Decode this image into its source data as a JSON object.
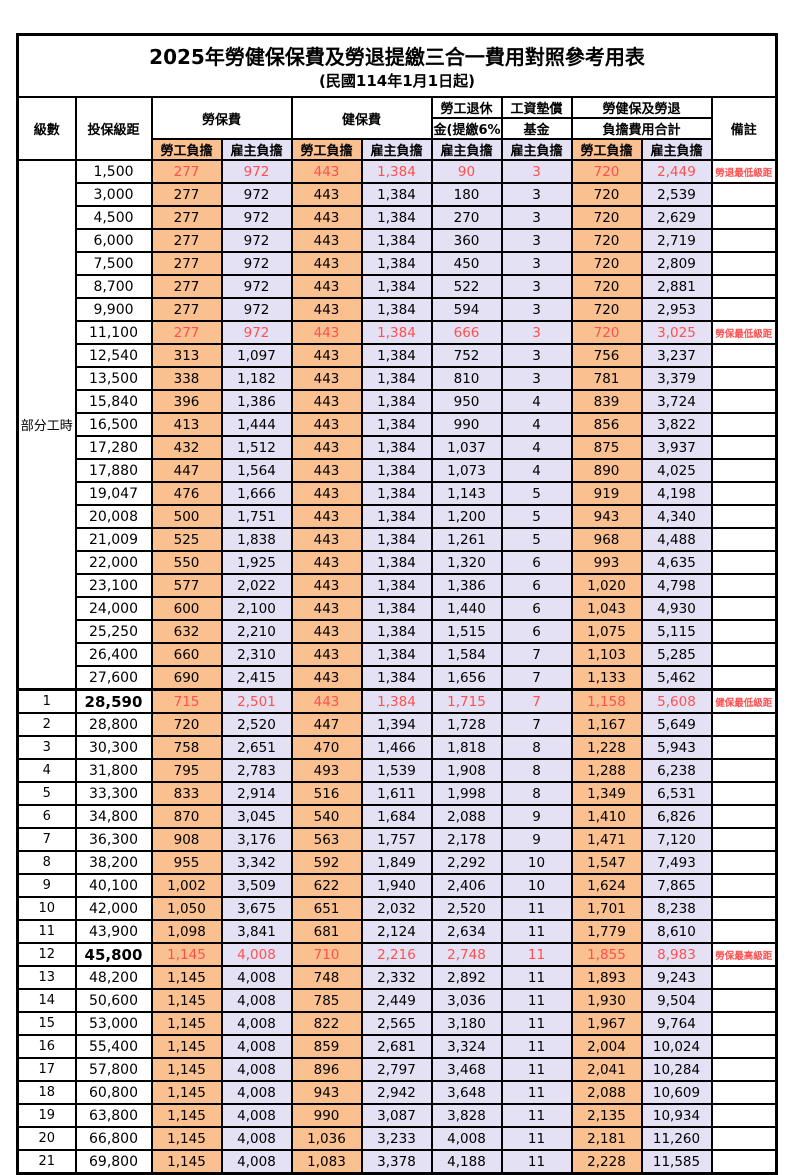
{
  "title": "2025年勞健保保費及勞退提繳三合一費用對照參考用表",
  "subtitle": "(民國114年1月1日起)",
  "colors": {
    "emp": "#FAC090",
    "er": "#E3E1F3",
    "red": "#FF5050"
  },
  "header": {
    "level": "級數",
    "bracket": "投保級距",
    "labor": "勞保費",
    "health": "健保費",
    "pension_line1": "勞工退休",
    "pension_line2": "金(提繳6%)",
    "fund_line1": "工資墊償",
    "fund_line2": "基金",
    "total_line1": "勞健保及勞退",
    "total_line2": "負擔費用合計",
    "remark": "備註",
    "emp": "勞工負擔",
    "er": "雇主負擔"
  },
  "table": {
    "part_time_label": "部分工時",
    "part_time_span": 23,
    "columns": [
      "級數",
      "投保級距",
      "勞保費-勞工負擔",
      "勞保費-雇主負擔",
      "健保費-勞工負擔",
      "健保費-雇主負擔",
      "勞工退休金(提繳6%)-雇主負擔",
      "工資墊償基金-雇主負擔",
      "合計-勞工負擔",
      "合計-雇主負擔",
      "備註"
    ],
    "rows": [
      {
        "level": "",
        "bracket": "1,500",
        "cells": [
          "277",
          "972",
          "443",
          "1,384",
          "90",
          "3",
          "720",
          "2,449"
        ],
        "remark": "勞退最低級距",
        "highlight": true
      },
      {
        "level": "",
        "bracket": "3,000",
        "cells": [
          "277",
          "972",
          "443",
          "1,384",
          "180",
          "3",
          "720",
          "2,539"
        ],
        "remark": ""
      },
      {
        "level": "",
        "bracket": "4,500",
        "cells": [
          "277",
          "972",
          "443",
          "1,384",
          "270",
          "3",
          "720",
          "2,629"
        ],
        "remark": ""
      },
      {
        "level": "",
        "bracket": "6,000",
        "cells": [
          "277",
          "972",
          "443",
          "1,384",
          "360",
          "3",
          "720",
          "2,719"
        ],
        "remark": ""
      },
      {
        "level": "",
        "bracket": "7,500",
        "cells": [
          "277",
          "972",
          "443",
          "1,384",
          "450",
          "3",
          "720",
          "2,809"
        ],
        "remark": ""
      },
      {
        "level": "",
        "bracket": "8,700",
        "cells": [
          "277",
          "972",
          "443",
          "1,384",
          "522",
          "3",
          "720",
          "2,881"
        ],
        "remark": ""
      },
      {
        "level": "",
        "bracket": "9,900",
        "cells": [
          "277",
          "972",
          "443",
          "1,384",
          "594",
          "3",
          "720",
          "2,953"
        ],
        "remark": ""
      },
      {
        "level": "",
        "bracket": "11,100",
        "cells": [
          "277",
          "972",
          "443",
          "1,384",
          "666",
          "3",
          "720",
          "3,025"
        ],
        "remark": "勞保最低級距",
        "highlight": true
      },
      {
        "level": "",
        "bracket": "12,540",
        "cells": [
          "313",
          "1,097",
          "443",
          "1,384",
          "752",
          "3",
          "756",
          "3,237"
        ],
        "remark": ""
      },
      {
        "level": "",
        "bracket": "13,500",
        "cells": [
          "338",
          "1,182",
          "443",
          "1,384",
          "810",
          "3",
          "781",
          "3,379"
        ],
        "remark": ""
      },
      {
        "level": "",
        "bracket": "15,840",
        "cells": [
          "396",
          "1,386",
          "443",
          "1,384",
          "950",
          "4",
          "839",
          "3,724"
        ],
        "remark": ""
      },
      {
        "level": "",
        "bracket": "16,500",
        "cells": [
          "413",
          "1,444",
          "443",
          "1,384",
          "990",
          "4",
          "856",
          "3,822"
        ],
        "remark": ""
      },
      {
        "level": "",
        "bracket": "17,280",
        "cells": [
          "432",
          "1,512",
          "443",
          "1,384",
          "1,037",
          "4",
          "875",
          "3,937"
        ],
        "remark": ""
      },
      {
        "level": "",
        "bracket": "17,880",
        "cells": [
          "447",
          "1,564",
          "443",
          "1,384",
          "1,073",
          "4",
          "890",
          "4,025"
        ],
        "remark": ""
      },
      {
        "level": "",
        "bracket": "19,047",
        "cells": [
          "476",
          "1,666",
          "443",
          "1,384",
          "1,143",
          "5",
          "919",
          "4,198"
        ],
        "remark": ""
      },
      {
        "level": "",
        "bracket": "20,008",
        "cells": [
          "500",
          "1,751",
          "443",
          "1,384",
          "1,200",
          "5",
          "943",
          "4,340"
        ],
        "remark": ""
      },
      {
        "level": "",
        "bracket": "21,009",
        "cells": [
          "525",
          "1,838",
          "443",
          "1,384",
          "1,261",
          "5",
          "968",
          "4,488"
        ],
        "remark": ""
      },
      {
        "level": "",
        "bracket": "22,000",
        "cells": [
          "550",
          "1,925",
          "443",
          "1,384",
          "1,320",
          "6",
          "993",
          "4,635"
        ],
        "remark": ""
      },
      {
        "level": "",
        "bracket": "23,100",
        "cells": [
          "577",
          "2,022",
          "443",
          "1,384",
          "1,386",
          "6",
          "1,020",
          "4,798"
        ],
        "remark": ""
      },
      {
        "level": "",
        "bracket": "24,000",
        "cells": [
          "600",
          "2,100",
          "443",
          "1,384",
          "1,440",
          "6",
          "1,043",
          "4,930"
        ],
        "remark": ""
      },
      {
        "level": "",
        "bracket": "25,250",
        "cells": [
          "632",
          "2,210",
          "443",
          "1,384",
          "1,515",
          "6",
          "1,075",
          "5,115"
        ],
        "remark": ""
      },
      {
        "level": "",
        "bracket": "26,400",
        "cells": [
          "660",
          "2,310",
          "443",
          "1,384",
          "1,584",
          "7",
          "1,103",
          "5,285"
        ],
        "remark": ""
      },
      {
        "level": "",
        "bracket": "27,600",
        "cells": [
          "690",
          "2,415",
          "443",
          "1,384",
          "1,656",
          "7",
          "1,133",
          "5,462"
        ],
        "remark": ""
      },
      {
        "level": "1",
        "bracket": "28,590",
        "cells": [
          "715",
          "2,501",
          "443",
          "1,384",
          "1,715",
          "7",
          "1,158",
          "5,608"
        ],
        "remark": "健保最低級距",
        "highlight": true,
        "bold_bracket": true,
        "thick_top": true
      },
      {
        "level": "2",
        "bracket": "28,800",
        "cells": [
          "720",
          "2,520",
          "447",
          "1,394",
          "1,728",
          "7",
          "1,167",
          "5,649"
        ],
        "remark": ""
      },
      {
        "level": "3",
        "bracket": "30,300",
        "cells": [
          "758",
          "2,651",
          "470",
          "1,466",
          "1,818",
          "8",
          "1,228",
          "5,943"
        ],
        "remark": ""
      },
      {
        "level": "4",
        "bracket": "31,800",
        "cells": [
          "795",
          "2,783",
          "493",
          "1,539",
          "1,908",
          "8",
          "1,288",
          "6,238"
        ],
        "remark": ""
      },
      {
        "level": "5",
        "bracket": "33,300",
        "cells": [
          "833",
          "2,914",
          "516",
          "1,611",
          "1,998",
          "8",
          "1,349",
          "6,531"
        ],
        "remark": ""
      },
      {
        "level": "6",
        "bracket": "34,800",
        "cells": [
          "870",
          "3,045",
          "540",
          "1,684",
          "2,088",
          "9",
          "1,410",
          "6,826"
        ],
        "remark": ""
      },
      {
        "level": "7",
        "bracket": "36,300",
        "cells": [
          "908",
          "3,176",
          "563",
          "1,757",
          "2,178",
          "9",
          "1,471",
          "7,120"
        ],
        "remark": ""
      },
      {
        "level": "8",
        "bracket": "38,200",
        "cells": [
          "955",
          "3,342",
          "592",
          "1,849",
          "2,292",
          "10",
          "1,547",
          "7,493"
        ],
        "remark": ""
      },
      {
        "level": "9",
        "bracket": "40,100",
        "cells": [
          "1,002",
          "3,509",
          "622",
          "1,940",
          "2,406",
          "10",
          "1,624",
          "7,865"
        ],
        "remark": ""
      },
      {
        "level": "10",
        "bracket": "42,000",
        "cells": [
          "1,050",
          "3,675",
          "651",
          "2,032",
          "2,520",
          "11",
          "1,701",
          "8,238"
        ],
        "remark": ""
      },
      {
        "level": "11",
        "bracket": "43,900",
        "cells": [
          "1,098",
          "3,841",
          "681",
          "2,124",
          "2,634",
          "11",
          "1,779",
          "8,610"
        ],
        "remark": ""
      },
      {
        "level": "12",
        "bracket": "45,800",
        "cells": [
          "1,145",
          "4,008",
          "710",
          "2,216",
          "2,748",
          "11",
          "1,855",
          "8,983"
        ],
        "remark": "勞保最高級距",
        "highlight": true,
        "bold_bracket": true
      },
      {
        "level": "13",
        "bracket": "48,200",
        "cells": [
          "1,145",
          "4,008",
          "748",
          "2,332",
          "2,892",
          "11",
          "1,893",
          "9,243"
        ],
        "remark": ""
      },
      {
        "level": "14",
        "bracket": "50,600",
        "cells": [
          "1,145",
          "4,008",
          "785",
          "2,449",
          "3,036",
          "11",
          "1,930",
          "9,504"
        ],
        "remark": ""
      },
      {
        "level": "15",
        "bracket": "53,000",
        "cells": [
          "1,145",
          "4,008",
          "822",
          "2,565",
          "3,180",
          "11",
          "1,967",
          "9,764"
        ],
        "remark": ""
      },
      {
        "level": "16",
        "bracket": "55,400",
        "cells": [
          "1,145",
          "4,008",
          "859",
          "2,681",
          "3,324",
          "11",
          "2,004",
          "10,024"
        ],
        "remark": ""
      },
      {
        "level": "17",
        "bracket": "57,800",
        "cells": [
          "1,145",
          "4,008",
          "896",
          "2,797",
          "3,468",
          "11",
          "2,041",
          "10,284"
        ],
        "remark": ""
      },
      {
        "level": "18",
        "bracket": "60,800",
        "cells": [
          "1,145",
          "4,008",
          "943",
          "2,942",
          "3,648",
          "11",
          "2,088",
          "10,609"
        ],
        "remark": ""
      },
      {
        "level": "19",
        "bracket": "63,800",
        "cells": [
          "1,145",
          "4,008",
          "990",
          "3,087",
          "3,828",
          "11",
          "2,135",
          "10,934"
        ],
        "remark": ""
      },
      {
        "level": "20",
        "bracket": "66,800",
        "cells": [
          "1,145",
          "4,008",
          "1,036",
          "3,233",
          "4,008",
          "11",
          "2,181",
          "11,260"
        ],
        "remark": ""
      },
      {
        "level": "21",
        "bracket": "69,800",
        "cells": [
          "1,145",
          "4,008",
          "1,083",
          "3,378",
          "4,188",
          "11",
          "2,228",
          "11,585"
        ],
        "remark": ""
      }
    ]
  }
}
